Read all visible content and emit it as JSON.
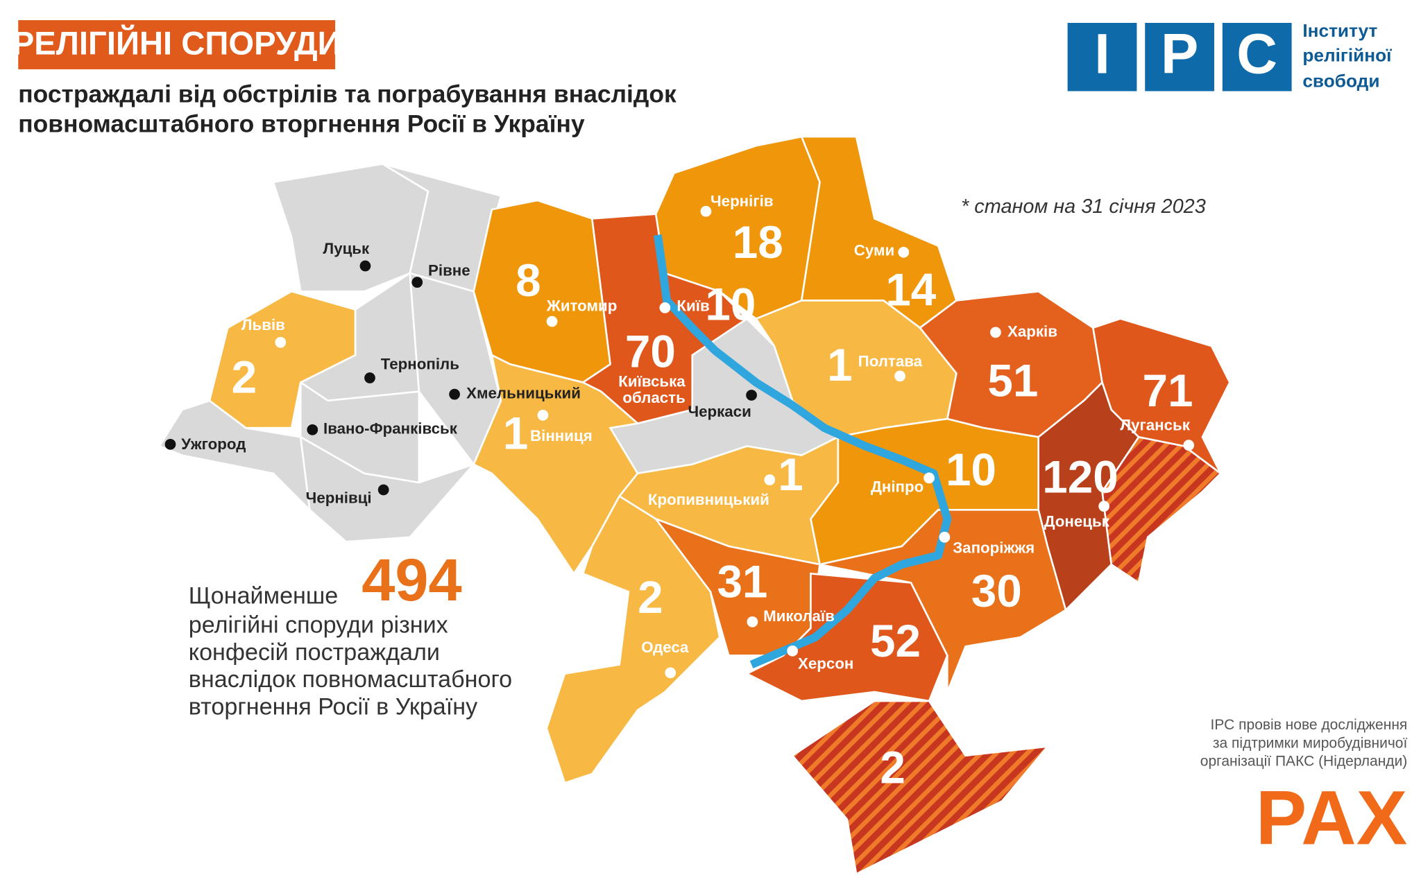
{
  "header": {
    "title": "РЕЛІГІЙНІ СПОРУДИ",
    "subtitle": [
      "постраждалі від обстрілів та пограбування внаслідок",
      "повномасштабного вторгнення Росії в Україну"
    ],
    "note": "* станом на 31 січня 2023"
  },
  "logo": {
    "letters": [
      "І",
      "Р",
      "С"
    ],
    "text": [
      "Інститут",
      "релігійної",
      "свободи"
    ]
  },
  "regions": [
    {
      "name": "Житомир",
      "value": 8,
      "color": "#f0960a"
    },
    {
      "name": "Київ",
      "value": 10,
      "color": "#f0960a"
    },
    {
      "name": "Київська область",
      "value": 70,
      "color": "#e0571c"
    },
    {
      "name": "Чернігів",
      "value": 18,
      "color": "#f0960a"
    },
    {
      "name": "Суми",
      "value": 14,
      "color": "#f0960a"
    },
    {
      "name": "Львів",
      "value": 2,
      "color": "#f7b944"
    },
    {
      "name": "Вінниця",
      "value": 1,
      "color": "#f7b944"
    },
    {
      "name": "Полтава",
      "value": 1,
      "color": "#f7b944"
    },
    {
      "name": "Харків",
      "value": 51,
      "color": "#e3601d"
    },
    {
      "name": "Луганськ",
      "value": 71,
      "color": "#e0571c"
    },
    {
      "name": "Донецьк",
      "value": 120,
      "color": "#b8401a"
    },
    {
      "name": "Дніпро",
      "value": 10,
      "color": "#f0960a"
    },
    {
      "name": "Кропивницький",
      "value": 1,
      "color": "#f7b944"
    },
    {
      "name": "Запоріжжя",
      "value": 30,
      "color": "#e8711a"
    },
    {
      "name": "Миколаїв",
      "value": 31,
      "color": "#e8711a"
    },
    {
      "name": "Херсон",
      "value": 52,
      "color": "#e0571c"
    },
    {
      "name": "Одеса",
      "value": 2,
      "color": "#f7b944"
    },
    {
      "value": 2,
      "color": "#c7361e"
    }
  ],
  "unaffected_cities": [
    "Луцьк",
    "Рівне",
    "Тернопіль",
    "Хмельницький",
    "Івано-Франківськ",
    "Ужгород",
    "Чернівці",
    "Черкаси"
  ],
  "summary": {
    "prefix": "Щонайменше",
    "total": 494,
    "lines": [
      "релігійні споруди різних",
      "конфесій постраждали",
      "внаслідок повномасштабного",
      "вторгнення Росії в Україну"
    ]
  },
  "credits": [
    "ІРС провів нове дослідження",
    "за підтримки миробудівничої",
    "організації ПАКС (Нідерланди)"
  ],
  "partner": "PAX"
}
